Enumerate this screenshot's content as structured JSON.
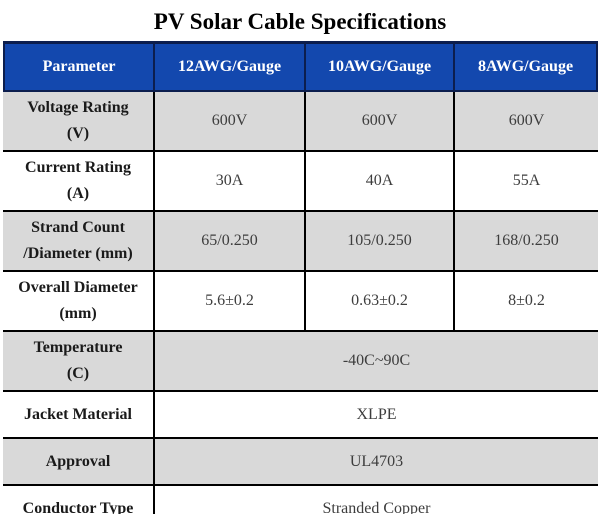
{
  "title": "PV Solar Cable Specifications",
  "colors": {
    "page_bg": "#ffffff",
    "title_text": "#000000",
    "header_bg": "#1348ae",
    "header_text": "#ffffff",
    "header_border": "#0c1e4e",
    "shaded_row_bg": "#d9d9d9",
    "grid_border": "#000000",
    "label_text": "#1a1a1a",
    "value_text": "#3d3d3d"
  },
  "table": {
    "headers": [
      "Parameter",
      "12AWG/Gauge",
      "10AWG/Gauge",
      "8AWG/Gauge"
    ],
    "rows": [
      {
        "label_line1": "Voltage Rating",
        "label_line2": "(V)",
        "values": [
          "600V",
          "600V",
          "600V"
        ],
        "shaded": true
      },
      {
        "label_line1": "Current Rating",
        "label_line2": "(A)",
        "values": [
          "30A",
          "40A",
          "55A"
        ],
        "shaded": false
      },
      {
        "label_line1": "Strand Count",
        "label_line2": "/Diameter (mm)",
        "values": [
          "65/0.250",
          "105/0.250",
          "168/0.250"
        ],
        "shaded": true
      },
      {
        "label_line1": "Overall Diameter",
        "label_line2": "(mm)",
        "values": [
          "5.6±0.2",
          "0.63±0.2",
          "8±0.2"
        ],
        "shaded": false
      },
      {
        "label_line1": "Temperature",
        "label_line2": "(C)",
        "merged_value": "-40C~90C",
        "shaded": true
      },
      {
        "label_line1": "Jacket Material",
        "label_line2": "",
        "merged_value": "XLPE",
        "shaded": false
      },
      {
        "label_line1": "Approval",
        "label_line2": "",
        "merged_value": "UL4703",
        "shaded": true
      },
      {
        "label_line1": "Conductor Type",
        "label_line2": "",
        "merged_value": "Stranded Copper",
        "shaded": false
      }
    ]
  }
}
